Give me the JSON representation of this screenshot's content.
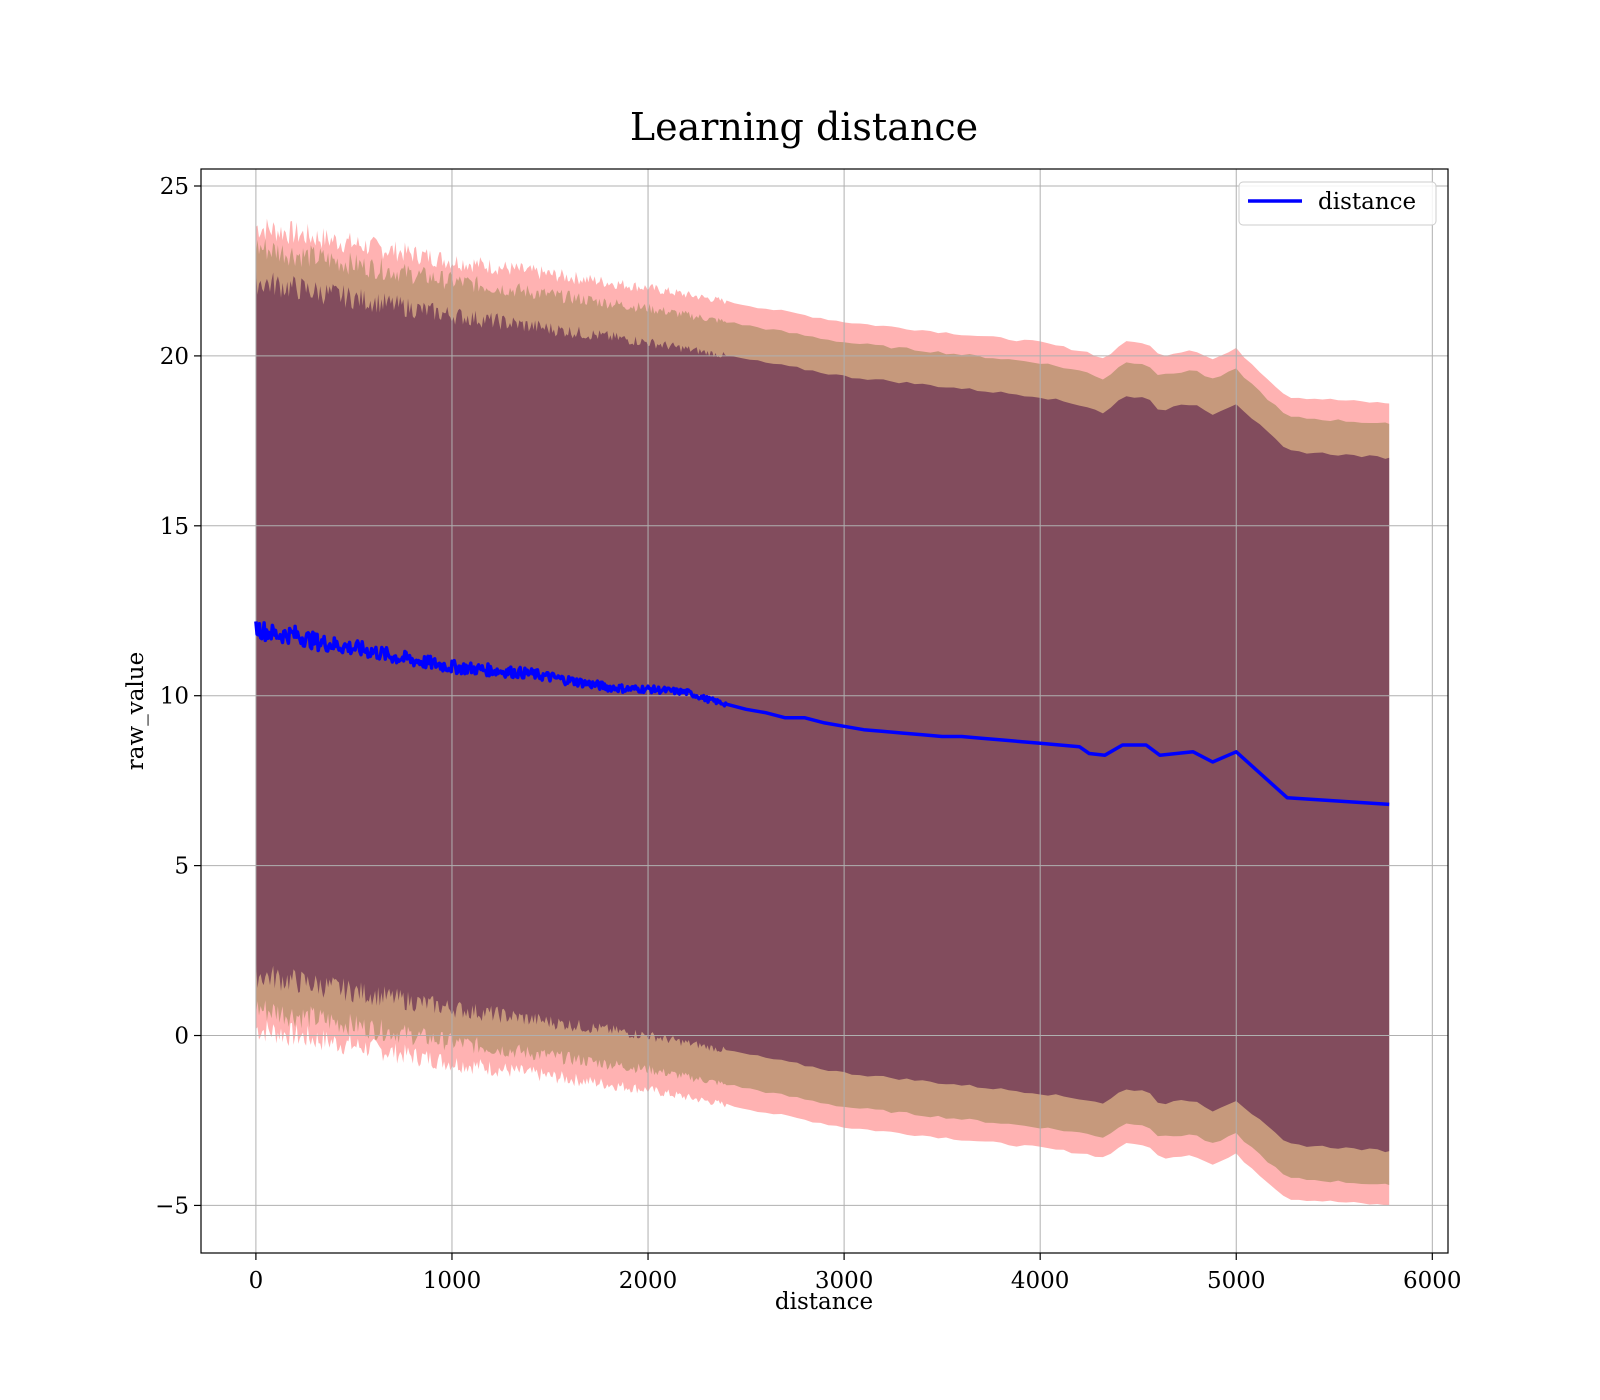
{
  "chart_data": {
    "type": "line",
    "title": "Learning distance",
    "xlabel": "distance",
    "ylabel": "raw_value",
    "xlim": [
      -280,
      6080
    ],
    "ylim": [
      -6.4,
      25.5
    ],
    "xticks": [
      0,
      1000,
      2000,
      3000,
      4000,
      5000,
      6000
    ],
    "yticks": [
      -5,
      0,
      5,
      10,
      15,
      20,
      25
    ],
    "ytick_labels": [
      "−5",
      "0",
      "5",
      "10",
      "15",
      "20",
      "25"
    ],
    "grid": true,
    "legend_position": "top-right",
    "colors": {
      "line": "#0000ff",
      "band": "#ff0000",
      "band_inner": "#4b0d44",
      "band_mid": "#807a3a"
    },
    "series": [
      {
        "name": "distance",
        "x": [
          0,
          100,
          200,
          300,
          400,
          500,
          600,
          700,
          800,
          900,
          1000,
          1100,
          1200,
          1300,
          1400,
          1500,
          1600,
          1700,
          1800,
          1900,
          2000,
          2100,
          2200,
          2300,
          2400,
          2500,
          2600,
          2700,
          2800,
          2900,
          3000,
          3100,
          3200,
          3300,
          3400,
          3500,
          3600,
          3700,
          3800,
          3900,
          4000,
          4100,
          4200,
          4250,
          4330,
          4420,
          4540,
          4610,
          4780,
          4880,
          5000,
          5260,
          5780
        ],
        "y": [
          12.0,
          11.8,
          11.8,
          11.6,
          11.5,
          11.4,
          11.3,
          11.15,
          11.05,
          10.95,
          10.85,
          10.8,
          10.75,
          10.7,
          10.65,
          10.55,
          10.45,
          10.35,
          10.25,
          10.2,
          10.2,
          10.15,
          10.1,
          9.9,
          9.75,
          9.6,
          9.5,
          9.35,
          9.35,
          9.2,
          9.1,
          9.0,
          8.95,
          8.9,
          8.85,
          8.8,
          8.8,
          8.75,
          8.7,
          8.65,
          8.6,
          8.55,
          8.5,
          8.3,
          8.25,
          8.55,
          8.55,
          8.25,
          8.35,
          8.05,
          8.35,
          7.0,
          6.8
        ]
      }
    ],
    "bands": [
      {
        "name": "",
        "x": [
          0,
          1000,
          2000,
          3000,
          4000,
          4250,
          4330,
          4420,
          4540,
          4610,
          4780,
          4880,
          5000,
          5260,
          5780
        ],
        "lower": [
          0.2,
          -0.8,
          -1.6,
          -2.7,
          -3.3,
          -3.5,
          -3.6,
          -3.2,
          -3.2,
          -3.6,
          -3.5,
          -3.8,
          -3.5,
          -4.8,
          -5.0
        ],
        "upper": [
          23.8,
          22.8,
          22.0,
          21.0,
          20.4,
          20.1,
          19.9,
          20.4,
          20.4,
          20.0,
          20.2,
          19.9,
          20.2,
          18.8,
          18.6
        ]
      },
      {
        "name": "",
        "x": [
          0,
          1000,
          2000,
          3000,
          4000,
          4250,
          4330,
          4420,
          4540,
          4610,
          4780,
          4880,
          5000,
          5260,
          5780
        ],
        "lower": [
          0.8,
          -0.2,
          -1.0,
          -2.1,
          -2.7,
          -2.9,
          -3.0,
          -2.6,
          -2.6,
          -3.0,
          -2.9,
          -3.2,
          -2.9,
          -4.2,
          -4.4
        ],
        "upper": [
          23.2,
          22.2,
          21.4,
          20.4,
          19.8,
          19.5,
          19.3,
          19.8,
          19.8,
          19.4,
          19.6,
          19.3,
          19.6,
          18.2,
          18.0
        ]
      },
      {
        "name": "",
        "x": [
          0,
          1000,
          2000,
          3000,
          4000,
          4250,
          4330,
          4420,
          4540,
          4610,
          4780,
          4880,
          5000,
          5260,
          5780
        ],
        "lower": [
          1.8,
          0.8,
          0.0,
          -1.1,
          -1.7,
          -1.9,
          -2.0,
          -1.6,
          -1.6,
          -2.0,
          -1.9,
          -2.2,
          -1.9,
          -3.2,
          -3.4
        ],
        "upper": [
          22.2,
          21.2,
          20.4,
          19.4,
          18.8,
          18.5,
          18.3,
          18.8,
          18.8,
          18.4,
          18.6,
          18.3,
          18.6,
          17.2,
          17.0
        ]
      }
    ]
  }
}
